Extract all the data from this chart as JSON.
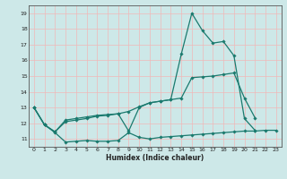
{
  "xlabel": "Humidex (Indice chaleur)",
  "x": [
    0,
    1,
    2,
    3,
    4,
    5,
    6,
    7,
    8,
    9,
    10,
    11,
    12,
    13,
    14,
    15,
    16,
    17,
    18,
    19,
    20,
    21,
    22,
    23
  ],
  "line_bottom": [
    13.0,
    11.9,
    11.4,
    10.8,
    10.85,
    10.9,
    10.85,
    10.85,
    10.9,
    11.4,
    11.1,
    11.0,
    11.1,
    11.15,
    11.2,
    11.25,
    11.3,
    11.35,
    11.4,
    11.45,
    11.5,
    11.5,
    11.55,
    11.55
  ],
  "line_top": [
    13.0,
    11.9,
    11.45,
    12.2,
    12.3,
    12.4,
    12.5,
    12.55,
    12.6,
    11.5,
    13.0,
    13.3,
    13.4,
    13.5,
    16.4,
    19.0,
    17.9,
    17.1,
    17.2,
    16.3,
    12.3,
    11.55,
    null,
    null
  ],
  "line_mid": [
    13.0,
    11.9,
    11.45,
    12.1,
    12.2,
    12.3,
    12.45,
    12.5,
    12.6,
    12.75,
    13.05,
    13.3,
    13.4,
    13.5,
    13.6,
    14.9,
    14.95,
    15.0,
    15.1,
    15.2,
    13.6,
    12.35,
    null,
    null
  ],
  "line_color": "#1a7a6e",
  "bg_color": "#cde8e8",
  "grid_color_minor": "#f0b8b8",
  "grid_color_major": "#e8a8a8",
  "ylim": [
    10.5,
    19.5
  ],
  "xlim": [
    -0.5,
    23.5
  ],
  "yticks": [
    11,
    12,
    13,
    14,
    15,
    16,
    17,
    18,
    19
  ],
  "xticks": [
    0,
    1,
    2,
    3,
    4,
    5,
    6,
    7,
    8,
    9,
    10,
    11,
    12,
    13,
    14,
    15,
    16,
    17,
    18,
    19,
    20,
    21,
    22,
    23
  ],
  "marker_size": 1.8,
  "lw": 0.9
}
